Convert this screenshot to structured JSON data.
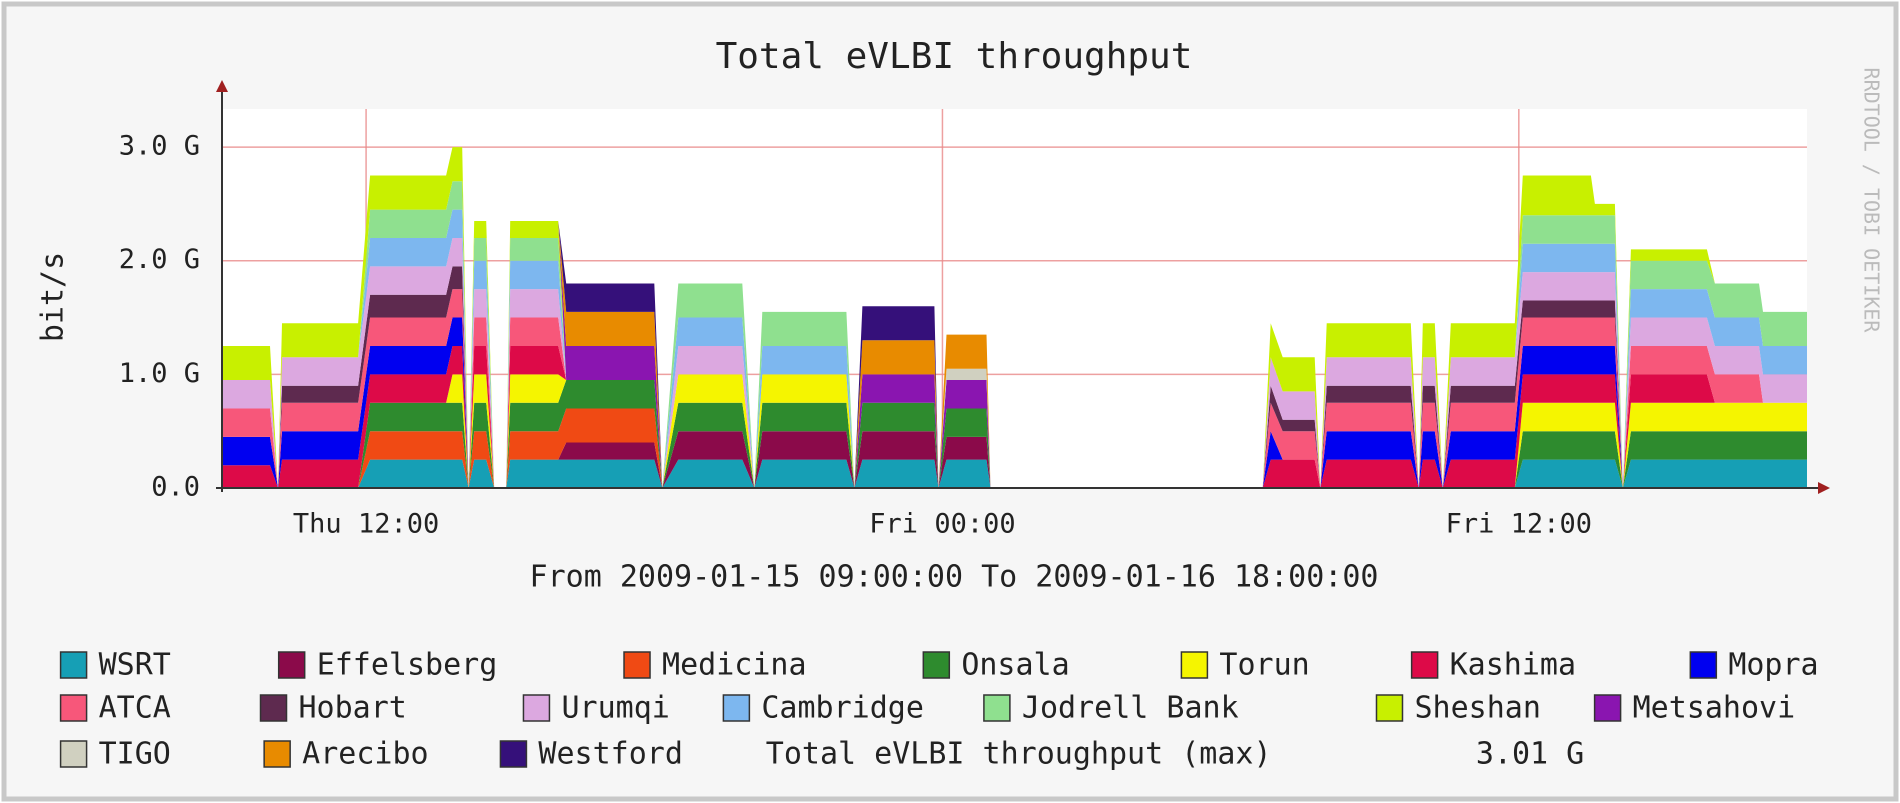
{
  "chart_data": {
    "type": "stacked_area",
    "title": "Total eVLBI throughput",
    "ylabel": "bit/s",
    "xlabel": "From 2009-01-15 09:00:00 To 2009-01-16 18:00:00",
    "watermark": "RRDTOOL / TOBI OETIKER",
    "max_label": "Total eVLBI throughput (max)",
    "max_value": "3.01 G",
    "grid": true,
    "xlim": [
      "Thu 09:00",
      "Fri 18:00"
    ],
    "xticks": [
      "Thu 12:00",
      "Fri 00:00",
      "Fri 12:00"
    ],
    "ylim": [
      0,
      3.3
    ],
    "yticks": [
      {
        "value": 0,
        "label": "0.0"
      },
      {
        "value": 1,
        "label": "1.0 G"
      },
      {
        "value": 2,
        "label": "2.0 G"
      },
      {
        "value": 3,
        "label": "3.0 G"
      }
    ],
    "x": [
      "Thu 09:00",
      "Thu 09:40",
      "Thu 10:00",
      "Thu 10:10",
      "Thu 10:15",
      "Thu 11:50",
      "Thu 12:05",
      "Thu 13:40",
      "Thu 13:48",
      "Thu 14:00",
      "Thu 14:08",
      "Thu 14:15",
      "Thu 14:30",
      "Thu 14:40",
      "Thu 14:55",
      "Thu 15:00",
      "Thu 16:00",
      "Thu 16:10",
      "Thu 18:00",
      "Thu 18:10",
      "Thu 18:30",
      "Thu 19:50",
      "Thu 20:05",
      "Thu 20:15",
      "Thu 22:00",
      "Thu 22:10",
      "Thu 22:20",
      "Thu 23:50",
      "Thu 23:55",
      "Fri 00:05",
      "Fri 00:55",
      "Fri 01:00",
      "Fri 06:40",
      "Fri 06:50",
      "Fri 07:05",
      "Fri 07:45",
      "Fri 07:52",
      "Fri 08:00",
      "Fri 09:45",
      "Fri 09:55",
      "Fri 10:00",
      "Fri 10:15",
      "Fri 10:25",
      "Fri 10:35",
      "Fri 11:55",
      "Fri 12:05",
      "Fri 13:30",
      "Fri 13:35",
      "Fri 14:00",
      "Fri 14:10",
      "Fri 14:20",
      "Fri 15:55",
      "Fri 16:05",
      "Fri 17:00",
      "Fri 17:05",
      "Fri 18:00"
    ],
    "series": [
      {
        "name": "WSRT",
        "color": "#169fb5",
        "values": [
          0,
          0,
          0,
          0,
          0,
          0,
          0.25,
          0.25,
          0.25,
          0.25,
          0,
          0.25,
          0.25,
          0,
          0,
          0.25,
          0.25,
          0.25,
          0.25,
          0,
          0.25,
          0.25,
          0,
          0.25,
          0.25,
          0,
          0.25,
          0.25,
          0,
          0.25,
          0.25,
          0,
          0,
          0,
          0,
          0,
          0,
          0,
          0,
          0,
          0,
          0,
          0,
          0,
          0,
          0.25,
          0.25,
          0.25,
          0.25,
          0,
          0.25,
          0.25,
          0.25,
          0.25,
          0.25,
          0.25
        ]
      },
      {
        "name": "Effelsberg",
        "color": "#8b0a4a",
        "values": [
          0,
          0,
          0,
          0,
          0,
          0,
          0,
          0,
          0,
          0,
          0,
          0,
          0,
          0,
          0,
          0,
          0,
          0.15,
          0.15,
          0,
          0.25,
          0.25,
          0,
          0.25,
          0.25,
          0,
          0.25,
          0.25,
          0,
          0.2,
          0.2,
          0,
          0,
          0,
          0,
          0,
          0,
          0,
          0,
          0,
          0,
          0,
          0,
          0,
          0,
          0,
          0,
          0,
          0,
          0,
          0,
          0,
          0,
          0,
          0,
          0
        ]
      },
      {
        "name": "Medicina",
        "color": "#f04a14",
        "values": [
          0,
          0,
          0,
          0,
          0,
          0,
          0.25,
          0.25,
          0.25,
          0.25,
          0,
          0.25,
          0.25,
          0,
          0,
          0.25,
          0.25,
          0.3,
          0.3,
          0,
          0,
          0,
          0,
          0,
          0,
          0,
          0,
          0,
          0,
          0,
          0,
          0,
          0,
          0,
          0,
          0,
          0,
          0,
          0,
          0,
          0,
          0,
          0,
          0,
          0,
          0,
          0,
          0,
          0,
          0,
          0,
          0,
          0,
          0,
          0,
          0
        ]
      },
      {
        "name": "Onsala",
        "color": "#2e8b2e",
        "values": [
          0,
          0,
          0,
          0,
          0,
          0,
          0.25,
          0.25,
          0.25,
          0.25,
          0,
          0.25,
          0.25,
          0,
          0,
          0.25,
          0.25,
          0.25,
          0.25,
          0,
          0.25,
          0.25,
          0,
          0.25,
          0.25,
          0,
          0.25,
          0.25,
          0,
          0.25,
          0.25,
          0,
          0,
          0,
          0,
          0,
          0,
          0,
          0,
          0,
          0,
          0,
          0,
          0,
          0,
          0.25,
          0.25,
          0.25,
          0.25,
          0,
          0.25,
          0.25,
          0.25,
          0.25,
          0.25,
          0.25
        ]
      },
      {
        "name": "Torun",
        "color": "#f5f500",
        "values": [
          0,
          0,
          0,
          0,
          0,
          0,
          0,
          0,
          0.25,
          0.25,
          0,
          0.25,
          0.25,
          0,
          0,
          0.25,
          0.25,
          0,
          0,
          0,
          0.25,
          0.25,
          0,
          0.25,
          0.25,
          0,
          0,
          0,
          0,
          0,
          0,
          0,
          0,
          0,
          0,
          0,
          0,
          0,
          0,
          0,
          0,
          0,
          0,
          0,
          0,
          0.25,
          0.25,
          0.25,
          0.25,
          0,
          0.25,
          0.25,
          0.25,
          0.25,
          0.25,
          0.25
        ]
      },
      {
        "name": "Kashima",
        "color": "#dd0a48",
        "values": [
          0.2,
          0.2,
          0.2,
          0,
          0.25,
          0.25,
          0.25,
          0.25,
          0.25,
          0.25,
          0,
          0.25,
          0.25,
          0,
          0,
          0.25,
          0.25,
          0,
          0,
          0,
          0,
          0,
          0,
          0,
          0,
          0,
          0,
          0,
          0,
          0,
          0,
          0,
          0,
          0.25,
          0.25,
          0.25,
          0,
          0.25,
          0.25,
          0,
          0.25,
          0.25,
          0,
          0.25,
          0.25,
          0.25,
          0.25,
          0.25,
          0.25,
          0,
          0.25,
          0.25,
          0,
          0,
          0,
          0
        ]
      },
      {
        "name": "Mopra",
        "color": "#0000f0",
        "values": [
          0.25,
          0.25,
          0.25,
          0,
          0.25,
          0.25,
          0.25,
          0.25,
          0.25,
          0.25,
          0,
          0,
          0,
          0,
          0,
          0,
          0,
          0,
          0,
          0,
          0,
          0,
          0,
          0,
          0,
          0,
          0,
          0,
          0,
          0,
          0,
          0,
          0,
          0.25,
          0,
          0,
          0,
          0.25,
          0.25,
          0,
          0.25,
          0.25,
          0,
          0.25,
          0.25,
          0.25,
          0.25,
          0.25,
          0.25,
          0,
          0,
          0,
          0,
          0,
          0,
          0
        ]
      },
      {
        "name": "ATCA",
        "color": "#f7577a",
        "values": [
          0.25,
          0.25,
          0.25,
          0,
          0.25,
          0.25,
          0.25,
          0.25,
          0.25,
          0.25,
          0,
          0.25,
          0.25,
          0,
          0,
          0.25,
          0.25,
          0,
          0,
          0,
          0,
          0,
          0,
          0,
          0,
          0,
          0,
          0,
          0,
          0,
          0,
          0,
          0,
          0.25,
          0.25,
          0.25,
          0,
          0.25,
          0.25,
          0,
          0.25,
          0.25,
          0,
          0.25,
          0.25,
          0.25,
          0.25,
          0.25,
          0.25,
          0,
          0.25,
          0.25,
          0.25,
          0.25,
          0,
          0
        ]
      },
      {
        "name": "Hobart",
        "color": "#5e2a4f",
        "values": [
          0,
          0,
          0,
          0,
          0.15,
          0.15,
          0.2,
          0.2,
          0.2,
          0.2,
          0,
          0,
          0,
          0,
          0,
          0,
          0,
          0,
          0,
          0,
          0,
          0,
          0,
          0,
          0,
          0,
          0,
          0,
          0,
          0,
          0,
          0,
          0,
          0.15,
          0.1,
          0.1,
          0,
          0.15,
          0.15,
          0,
          0.15,
          0.15,
          0,
          0.15,
          0.15,
          0.15,
          0.15,
          0.15,
          0.15,
          0,
          0,
          0,
          0,
          0,
          0,
          0
        ]
      },
      {
        "name": "Urumqi",
        "color": "#dca8e0",
        "values": [
          0.25,
          0.25,
          0.25,
          0,
          0.25,
          0.25,
          0.25,
          0.25,
          0.25,
          0.25,
          0,
          0.25,
          0.25,
          0,
          0,
          0.25,
          0.25,
          0,
          0,
          0,
          0.25,
          0.25,
          0,
          0,
          0,
          0,
          0,
          0,
          0,
          0,
          0,
          0,
          0,
          0.25,
          0.25,
          0.25,
          0,
          0.25,
          0.25,
          0,
          0.25,
          0.25,
          0,
          0.25,
          0.25,
          0.25,
          0.25,
          0.25,
          0.25,
          0,
          0.25,
          0.25,
          0.25,
          0.25,
          0.25,
          0.25
        ]
      },
      {
        "name": "Cambridge",
        "color": "#7db7ef",
        "values": [
          0,
          0,
          0,
          0,
          0,
          0,
          0.25,
          0.25,
          0.25,
          0.25,
          0,
          0.25,
          0.25,
          0,
          0,
          0.25,
          0.25,
          0,
          0,
          0,
          0.25,
          0.25,
          0,
          0.25,
          0.25,
          0,
          0,
          0,
          0,
          0,
          0,
          0,
          0,
          0,
          0,
          0,
          0,
          0,
          0,
          0,
          0,
          0,
          0,
          0,
          0,
          0.25,
          0.25,
          0.25,
          0.25,
          0,
          0.25,
          0.25,
          0.25,
          0.25,
          0.25,
          0.25
        ]
      },
      {
        "name": "Jodrell Bank",
        "color": "#8fe08f",
        "values": [
          0,
          0,
          0,
          0,
          0,
          0,
          0.25,
          0.25,
          0.25,
          0.25,
          0,
          0.2,
          0.2,
          0,
          0,
          0.2,
          0.2,
          0,
          0,
          0,
          0.3,
          0.3,
          0,
          0.3,
          0.3,
          0,
          0,
          0,
          0,
          0,
          0,
          0,
          0,
          0,
          0,
          0,
          0,
          0,
          0,
          0,
          0,
          0,
          0,
          0,
          0,
          0.25,
          0.25,
          0.25,
          0.25,
          0,
          0.25,
          0.25,
          0.3,
          0.3,
          0.3,
          0.3
        ]
      },
      {
        "name": "Sheshan",
        "color": "#c8f000",
        "values": [
          0.3,
          0.3,
          0.3,
          0,
          0.3,
          0.3,
          0.3,
          0.3,
          0.3,
          0.3,
          0,
          0.15,
          0.15,
          0,
          0,
          0.15,
          0.15,
          0,
          0,
          0,
          0,
          0,
          0,
          0,
          0,
          0,
          0,
          0,
          0,
          0,
          0,
          0,
          0,
          0.3,
          0.3,
          0.3,
          0,
          0.3,
          0.3,
          0,
          0.3,
          0.3,
          0,
          0.3,
          0.3,
          0.35,
          0.35,
          0.1,
          0.1,
          0,
          0.1,
          0.1,
          0,
          0,
          0,
          0
        ]
      },
      {
        "name": "Metsahovi",
        "color": "#8a15b0",
        "values": [
          0,
          0,
          0,
          0,
          0,
          0,
          0,
          0,
          0,
          0,
          0,
          0,
          0,
          0,
          0,
          0,
          0,
          0.3,
          0.3,
          0,
          0,
          0,
          0,
          0,
          0,
          0,
          0.25,
          0.25,
          0,
          0.25,
          0.25,
          0,
          0,
          0,
          0,
          0,
          0,
          0,
          0,
          0,
          0,
          0,
          0,
          0,
          0,
          0,
          0,
          0,
          0,
          0,
          0,
          0,
          0,
          0,
          0,
          0
        ]
      },
      {
        "name": "TIGO",
        "color": "#d0d0c0",
        "values": [
          0,
          0,
          0,
          0,
          0,
          0,
          0,
          0,
          0,
          0,
          0,
          0,
          0,
          0,
          0,
          0,
          0,
          0,
          0,
          0,
          0,
          0,
          0,
          0,
          0,
          0,
          0,
          0,
          0,
          0.1,
          0.1,
          0,
          0,
          0,
          0,
          0,
          0,
          0,
          0,
          0,
          0,
          0,
          0,
          0,
          0,
          0,
          0,
          0,
          0,
          0,
          0,
          0,
          0,
          0,
          0,
          0
        ]
      },
      {
        "name": "Arecibo",
        "color": "#e88b00",
        "values": [
          0,
          0,
          0,
          0,
          0,
          0,
          0,
          0,
          0,
          0,
          0,
          0,
          0,
          0,
          0,
          0,
          0,
          0.3,
          0.3,
          0,
          0,
          0,
          0,
          0,
          0,
          0,
          0.3,
          0.3,
          0,
          0.3,
          0.3,
          0,
          0,
          0,
          0,
          0,
          0,
          0,
          0,
          0,
          0,
          0,
          0,
          0,
          0,
          0,
          0,
          0,
          0,
          0,
          0,
          0,
          0,
          0,
          0,
          0
        ]
      },
      {
        "name": "Westford",
        "color": "#35107a",
        "values": [
          0,
          0,
          0,
          0,
          0,
          0,
          0,
          0,
          0,
          0,
          0,
          0,
          0,
          0,
          0,
          0,
          0,
          0.25,
          0.25,
          0,
          0,
          0,
          0,
          0,
          0,
          0,
          0.3,
          0.3,
          0,
          0,
          0,
          0,
          0,
          0,
          0,
          0,
          0,
          0,
          0,
          0,
          0,
          0,
          0,
          0,
          0,
          0,
          0,
          0,
          0,
          0,
          0,
          0,
          0,
          0,
          0,
          0
        ]
      }
    ]
  }
}
